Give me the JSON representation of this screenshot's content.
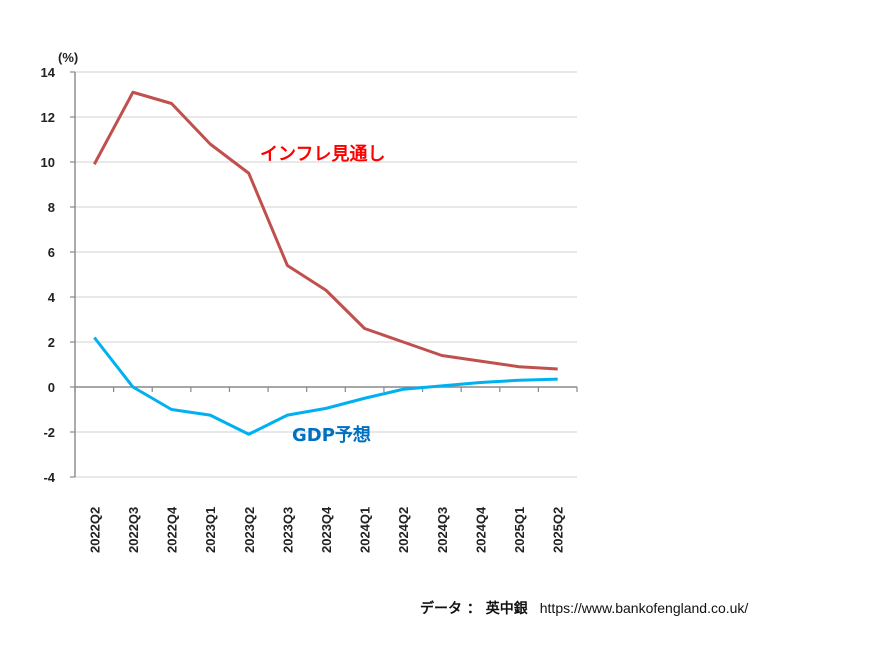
{
  "chart_data": {
    "type": "line",
    "title": "",
    "ylabel": "(%)",
    "xlabel": "",
    "ylim": [
      -4,
      14
    ],
    "yticks": [
      -4,
      -2,
      0,
      2,
      4,
      6,
      8,
      10,
      12,
      14
    ],
    "grid": true,
    "categories": [
      "2022Q2",
      "2022Q3",
      "2022Q4",
      "2023Q1",
      "2023Q2",
      "2023Q3",
      "2023Q4",
      "2024Q1",
      "2024Q2",
      "2024Q3",
      "2024Q4",
      "2025Q1",
      "2025Q2"
    ],
    "series": [
      {
        "name": "インフレ見通し",
        "color": "#c0504d",
        "label_color": "#ff0000",
        "values": [
          9.9,
          13.1,
          12.6,
          10.8,
          9.5,
          5.4,
          4.3,
          2.6,
          2.0,
          1.4,
          1.15,
          0.9,
          0.8
        ]
      },
      {
        "name": "GDP予想",
        "color": "#00b0f0",
        "label_color": "#0070c0",
        "values": [
          2.2,
          0.0,
          -1.0,
          -1.25,
          -2.1,
          -1.25,
          -0.95,
          -0.5,
          -0.1,
          0.05,
          0.2,
          0.3,
          0.35
        ]
      }
    ]
  },
  "source": {
    "label": "データ ： 英中銀",
    "url": "https://www.bankofengland.co.uk/"
  }
}
